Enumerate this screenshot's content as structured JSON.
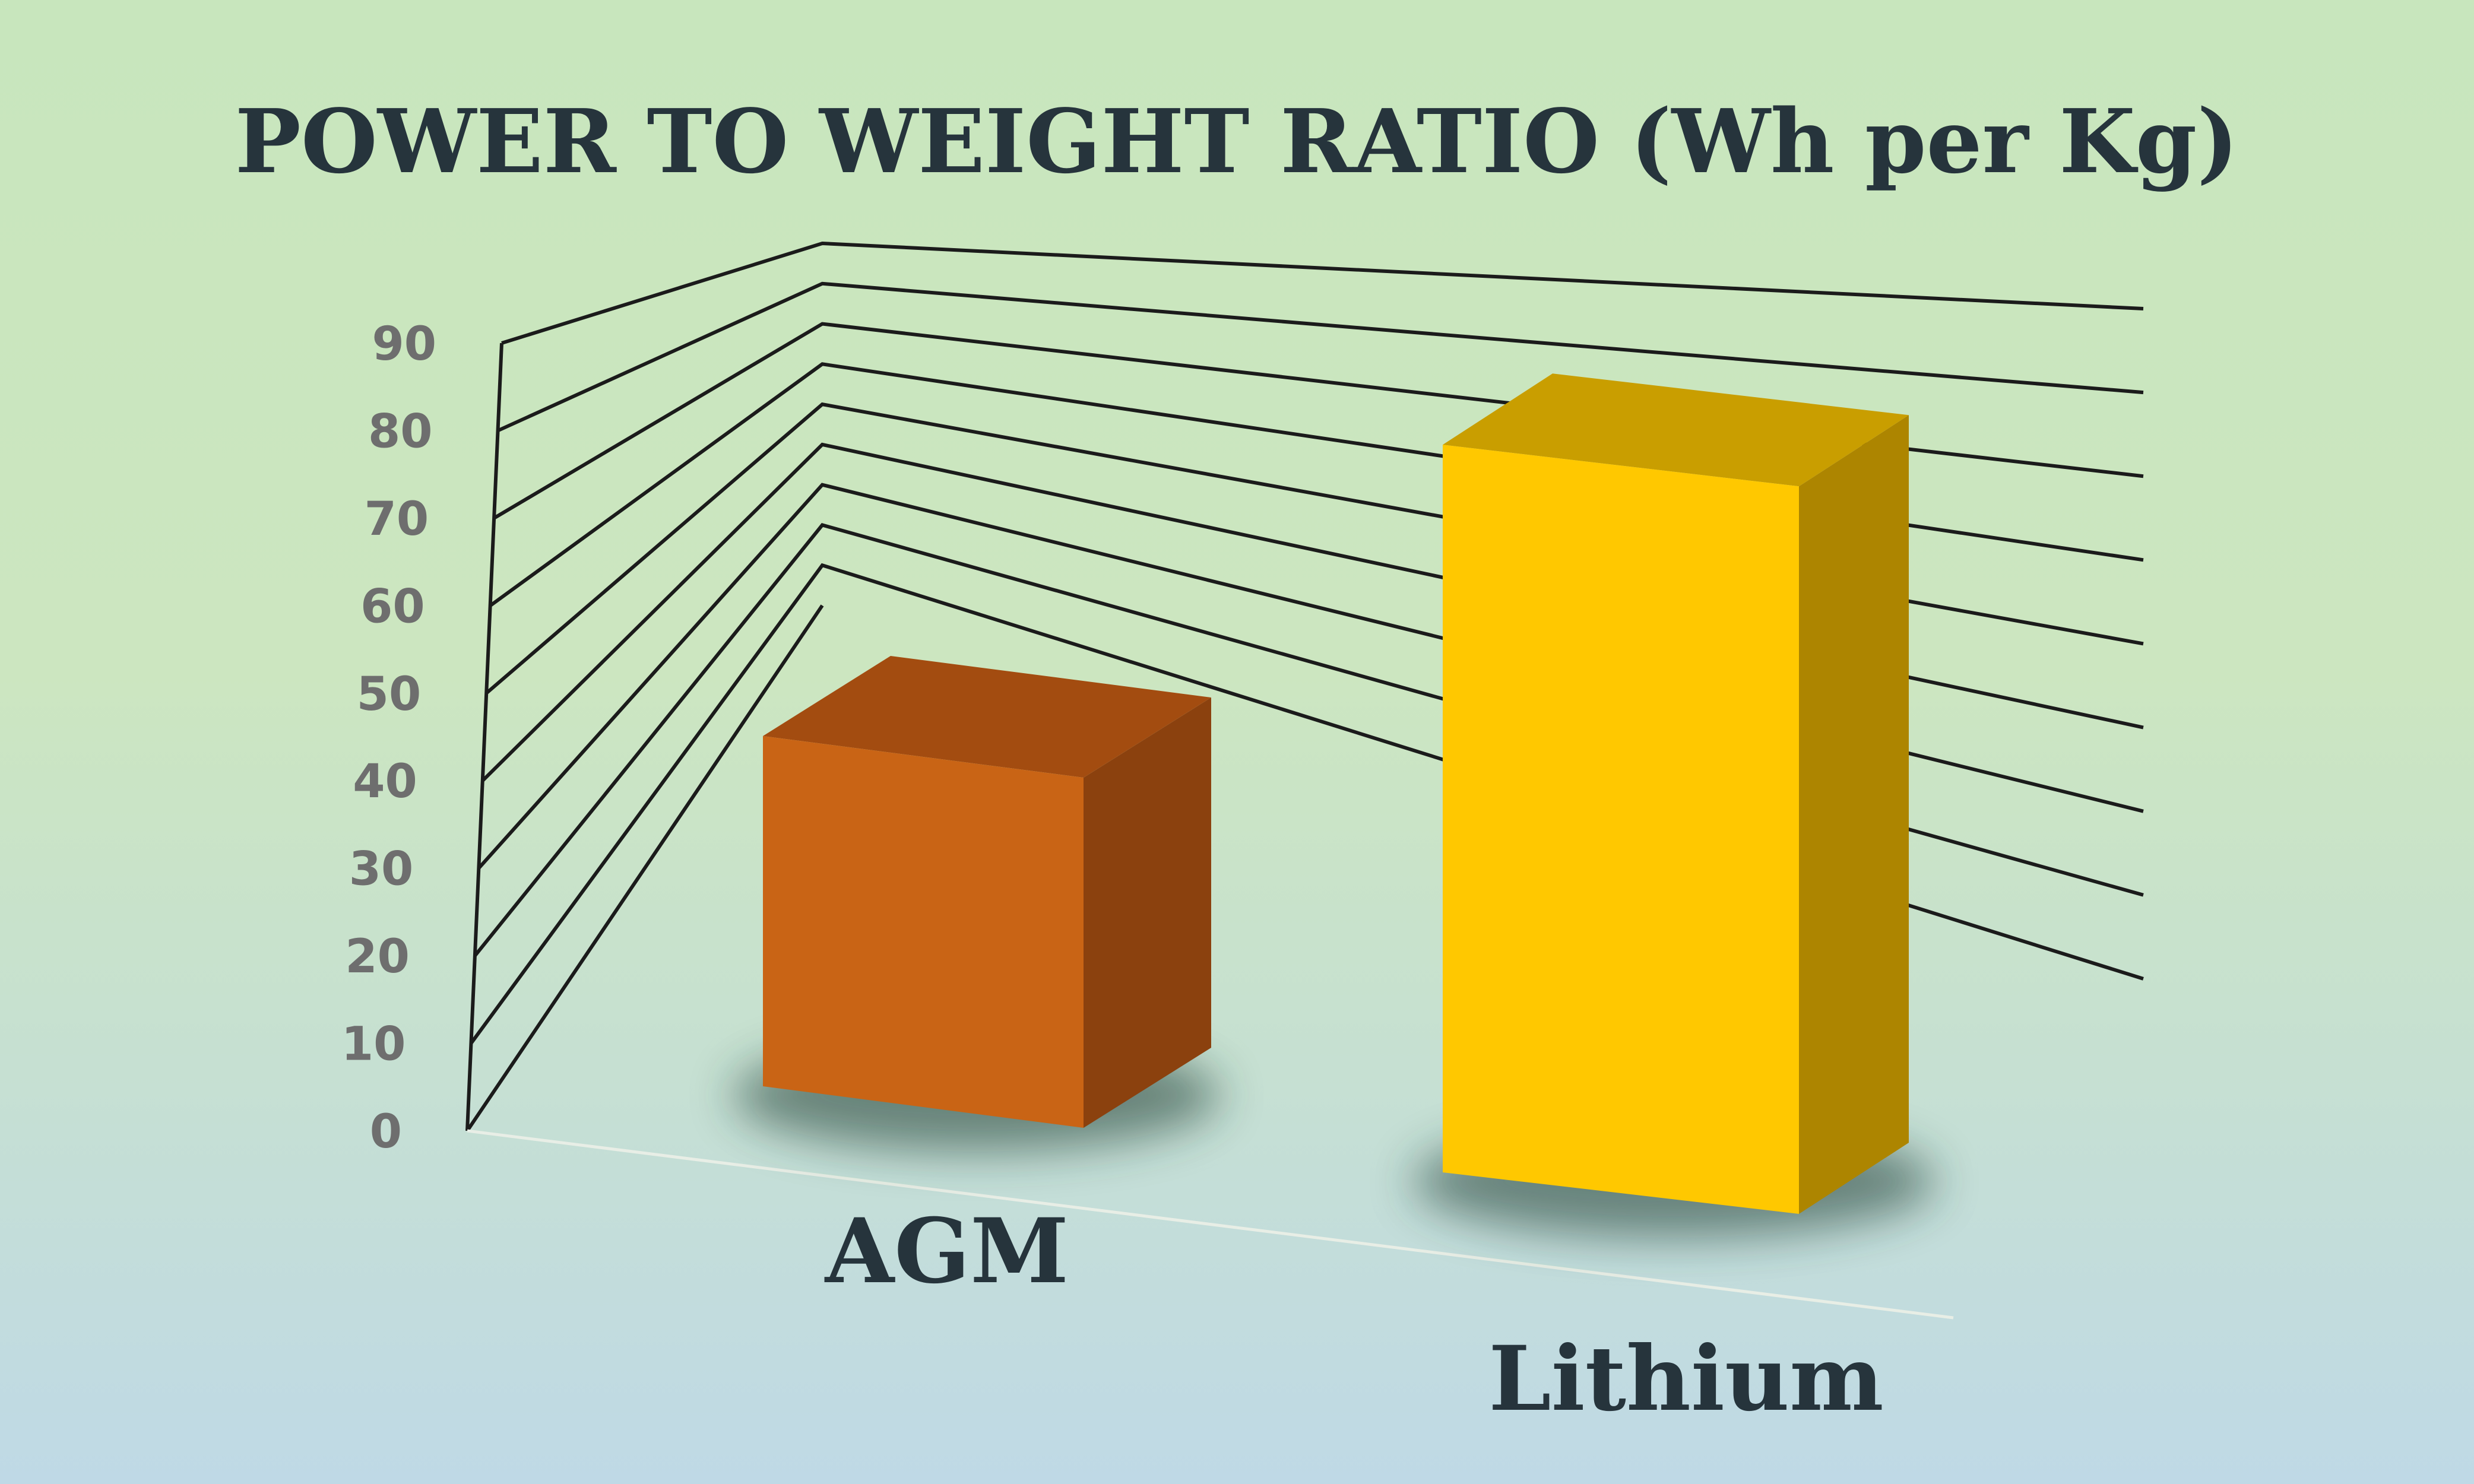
{
  "chart_data": {
    "type": "bar",
    "title": "POWER TO WEIGHT RATIO (Wh per Kg)",
    "categories": [
      "AGM",
      "Lithium"
    ],
    "values": [
      40,
      85
    ],
    "ylim": [
      0,
      90
    ],
    "yticks": [
      "0",
      "10",
      "20",
      "30",
      "40",
      "50",
      "60",
      "70",
      "80",
      "90"
    ],
    "grid": true,
    "style": "3d-column",
    "colors": [
      "#c96415",
      "#ffc800"
    ],
    "side_colors": [
      "#8b410e",
      "#ad8500"
    ],
    "top_colors": [
      "#a34c10",
      "#c99e00"
    ],
    "text_color": "#26343c",
    "tick_color": "#6e6e6e"
  }
}
